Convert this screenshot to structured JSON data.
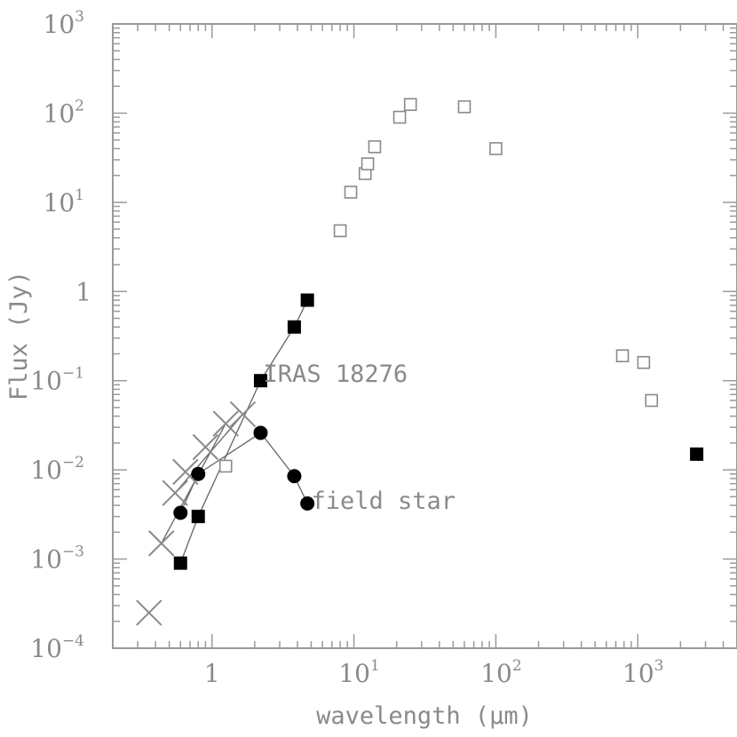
{
  "chart_data": {
    "type": "scatter",
    "xscale": "log",
    "yscale": "log",
    "xlim": [
      0.2,
      5000
    ],
    "ylim": [
      0.0001,
      1000
    ],
    "xlabel": "wavelength (μm)",
    "ylabel": "Flux (Jy)",
    "x_ticks": [
      {
        "value": 1,
        "base": "1",
        "exp": ""
      },
      {
        "value": 10,
        "base": "10",
        "exp": "1"
      },
      {
        "value": 100,
        "base": "10",
        "exp": "2"
      },
      {
        "value": 1000,
        "base": "10",
        "exp": "3"
      }
    ],
    "y_ticks": [
      {
        "value": 0.0001,
        "base": "10",
        "exp": "−4"
      },
      {
        "value": 0.001,
        "base": "10",
        "exp": "−3"
      },
      {
        "value": 0.01,
        "base": "10",
        "exp": "−2"
      },
      {
        "value": 0.1,
        "base": "10",
        "exp": "−1"
      },
      {
        "value": 1,
        "base": "1",
        "exp": ""
      },
      {
        "value": 10,
        "base": "10",
        "exp": "1"
      },
      {
        "value": 100,
        "base": "10",
        "exp": "2"
      },
      {
        "value": 1000,
        "base": "10",
        "exp": "3"
      }
    ],
    "series": [
      {
        "marker": "filled-square",
        "connected": true,
        "points": [
          [
            0.6,
            0.0009
          ],
          [
            0.8,
            0.003
          ],
          [
            2.2,
            0.1
          ],
          [
            3.8,
            0.4
          ],
          [
            4.7,
            0.8
          ]
        ]
      },
      {
        "marker": "filled-square",
        "connected": false,
        "points": [
          [
            2600,
            0.015
          ]
        ]
      },
      {
        "marker": "filled-circle",
        "connected": true,
        "points": [
          [
            0.6,
            0.0033
          ],
          [
            0.8,
            0.009
          ],
          [
            2.2,
            0.026
          ],
          [
            3.8,
            0.0085
          ],
          [
            4.7,
            0.0042
          ]
        ]
      },
      {
        "marker": "cross",
        "connected": false,
        "points": [
          [
            0.36,
            0.00025
          ],
          [
            0.44,
            0.0015
          ],
          [
            0.55,
            0.0055
          ],
          [
            0.65,
            0.0095
          ],
          [
            0.9,
            0.018
          ],
          [
            1.25,
            0.033
          ],
          [
            1.65,
            0.042
          ]
        ]
      },
      {
        "marker": "open-square",
        "connected": false,
        "points": [
          [
            1.25,
            0.011
          ],
          [
            8,
            4.8
          ],
          [
            9.5,
            13
          ],
          [
            12,
            21
          ],
          [
            12.5,
            27
          ],
          [
            14,
            42
          ],
          [
            21,
            90
          ],
          [
            25,
            125
          ],
          [
            60,
            118
          ],
          [
            100,
            40
          ],
          [
            780,
            0.19
          ],
          [
            1100,
            0.16
          ],
          [
            1250,
            0.06
          ]
        ]
      }
    ],
    "lines_extra": [
      {
        "points": [
          [
            0.44,
            0.0015
          ],
          [
            1.25,
            0.033
          ]
        ]
      },
      {
        "points": [
          [
            0.55,
            0.0055
          ],
          [
            1.65,
            0.042
          ]
        ]
      }
    ],
    "annotations": [
      {
        "text": "IRAS 18276",
        "x": 2.3,
        "y": 0.12
      },
      {
        "text": "field star",
        "x": 5.0,
        "y": 0.0045
      }
    ]
  }
}
